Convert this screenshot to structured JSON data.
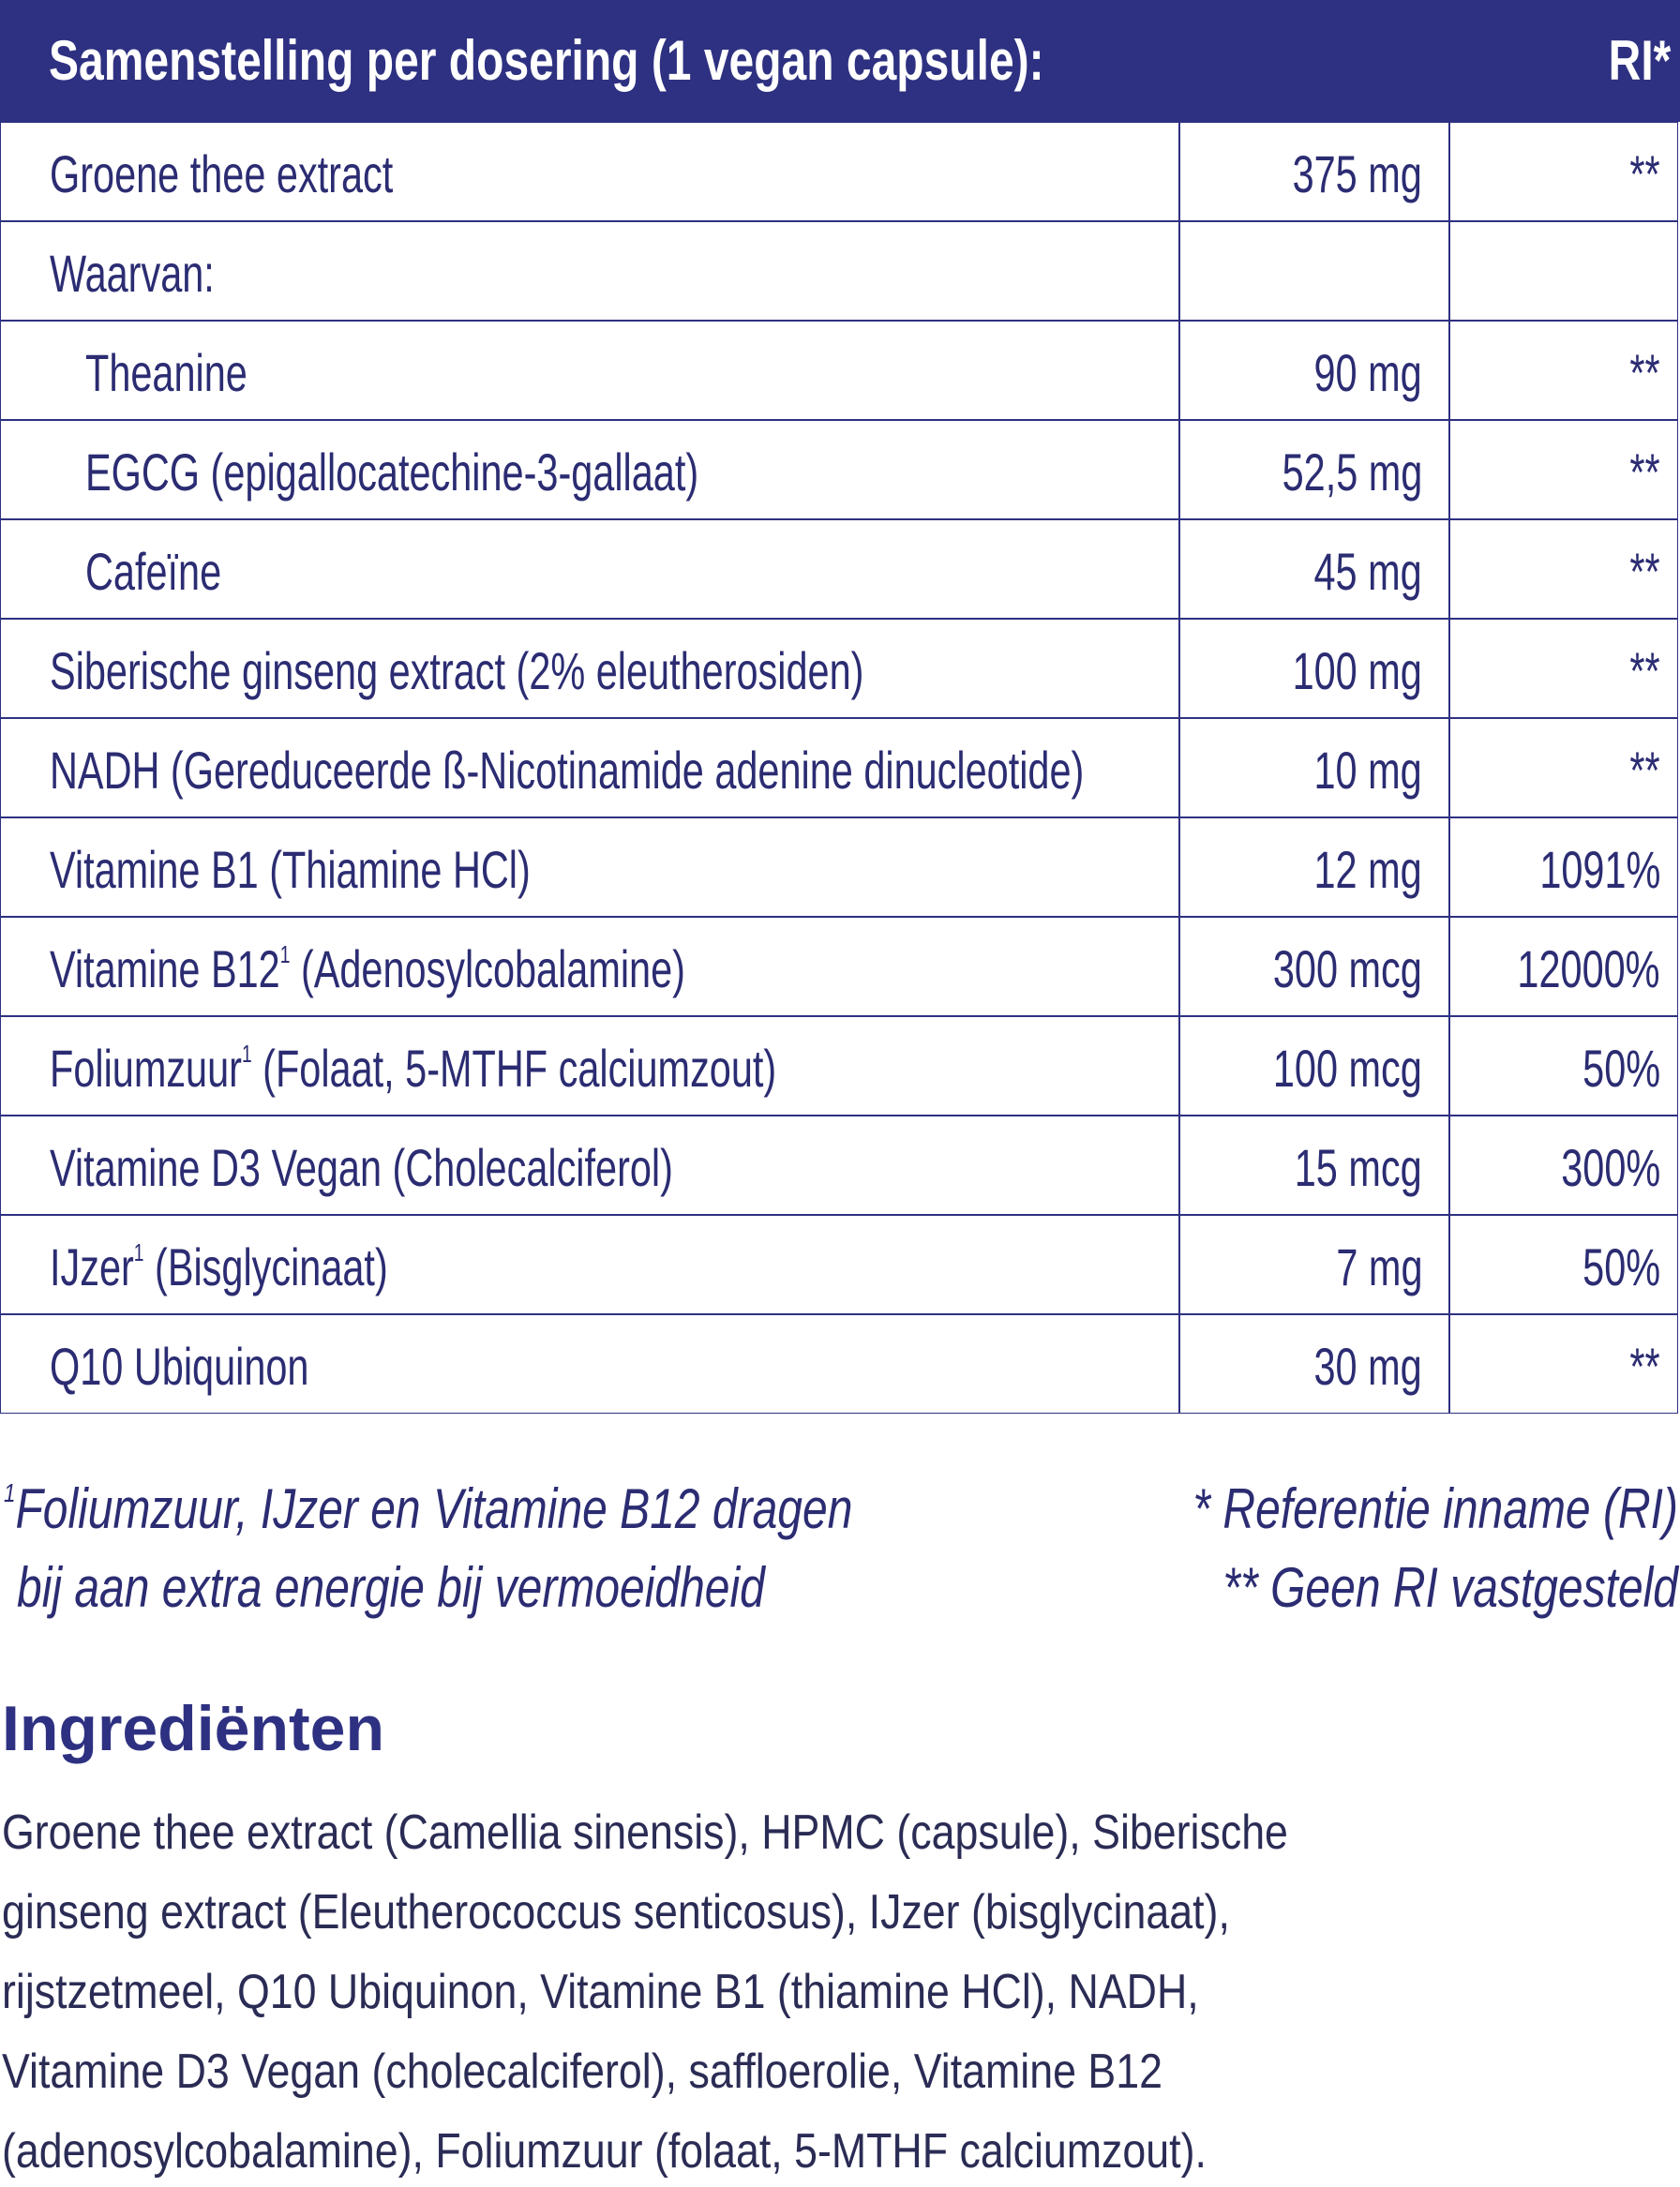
{
  "header": {
    "title": "Samenstelling per dosering (1 vegan capsule):",
    "ri": "RI*"
  },
  "rows": [
    {
      "name": "Groene thee extract",
      "amount": "375 mg",
      "ri": "**"
    },
    {
      "name": "Waarvan:"
    },
    {
      "name": "Theanine",
      "indent": true,
      "amount": "90 mg",
      "ri": "**"
    },
    {
      "name": "EGCG (epigallocatechine-3-gallaat)",
      "indent": true,
      "amount": "52,5 mg",
      "ri": "**"
    },
    {
      "name": "Cafeïne",
      "indent": true,
      "amount": "45 mg",
      "ri": "**"
    },
    {
      "name": "Siberische ginseng extract (2% eleutherosiden)",
      "amount": "100 mg",
      "ri": "**"
    },
    {
      "name": "NADH (Gereduceerde ß-Nicotinamide adenine dinucleotide)",
      "amount": "10 mg",
      "ri": "**"
    },
    {
      "name": "Vitamine B1 (Thiamine HCl)",
      "amount": "12 mg",
      "ri": "1091%"
    },
    {
      "name": "Vitamine B12",
      "sup": "1",
      "rest": " (Adenosylcobalamine)",
      "amount": "300 mcg",
      "ri": "12000%"
    },
    {
      "name": "Foliumzuur",
      "sup": "1",
      "rest": " (Folaat, 5-MTHF calciumzout)",
      "amount": "100 mcg",
      "ri": "50%"
    },
    {
      "name": "Vitamine D3 Vegan (Cholecalciferol)",
      "amount": "15 mcg",
      "ri": "300%"
    },
    {
      "name": "IJzer",
      "sup": "1",
      "rest": " (Bisglycinaat)",
      "amount": "7 mg",
      "ri": "50%"
    },
    {
      "name": "Q10 Ubiquinon",
      "amount": "30 mg",
      "ri": "**"
    }
  ],
  "footnotes": {
    "left_sup": "1",
    "left": [
      "Foliumzuur, IJzer en Vitamine B12 dragen",
      "bij aan extra energie bij vermoeidheid"
    ],
    "right": [
      "* Referentie inname (RI)",
      "** Geen RI vastgesteld"
    ]
  },
  "ingredients": {
    "title": "Ingrediënten",
    "lines": [
      "Groene thee extract (Camellia sinensis), HPMC (capsule), Siberische",
      "ginseng extract (Eleutherococcus senticosus), IJzer (bisglycinaat),",
      "rijstzetmeel, Q10 Ubiquinon, Vitamine B1 (thiamine HCl), NADH,",
      "Vitamine D3 Vegan (cholecalciferol), saffloerolie, Vitamine B12",
      "(adenosylcobalamine), Foliumzuur (folaat, 5-MTHF calciumzout)."
    ]
  }
}
